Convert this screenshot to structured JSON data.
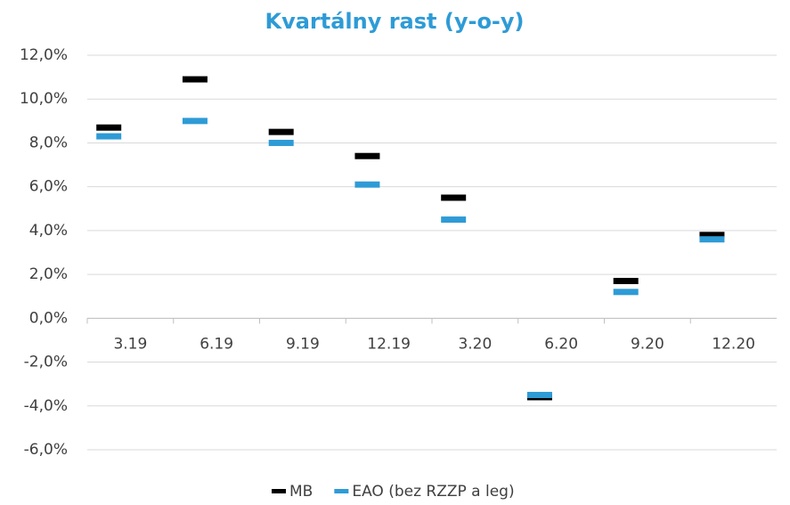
{
  "chart_data": {
    "type": "line",
    "title": "Kvartálny rast (y-o-y)",
    "categories": [
      "3.19",
      "6.19",
      "9.19",
      "12.19",
      "3.20",
      "6.20",
      "9.20",
      "12.20"
    ],
    "series": [
      {
        "name": "MB",
        "color": "#000000",
        "values": [
          8.7,
          10.9,
          8.5,
          7.4,
          5.5,
          -3.6,
          1.7,
          3.8
        ]
      },
      {
        "name": "EAO (bez RZZP a leg)",
        "color": "#2e9bd6",
        "values": [
          8.3,
          9.0,
          8.0,
          6.1,
          4.5,
          -3.5,
          1.2,
          3.6
        ]
      }
    ],
    "ylim": [
      -6,
      12
    ],
    "yticks": [
      {
        "value": -6,
        "label": "-6,0%"
      },
      {
        "value": -4,
        "label": "-4,0%"
      },
      {
        "value": -2,
        "label": "-2,0%"
      },
      {
        "value": 0,
        "label": "0,0%"
      },
      {
        "value": 2,
        "label": "2,0%"
      },
      {
        "value": 4,
        "label": "4,0%"
      },
      {
        "value": 6,
        "label": "6,0%"
      },
      {
        "value": 8,
        "label": "8,0%"
      },
      {
        "value": 10,
        "label": "10,0%"
      },
      {
        "value": 12,
        "label": "12,0%"
      }
    ],
    "grid": true,
    "legend": "bottom"
  }
}
